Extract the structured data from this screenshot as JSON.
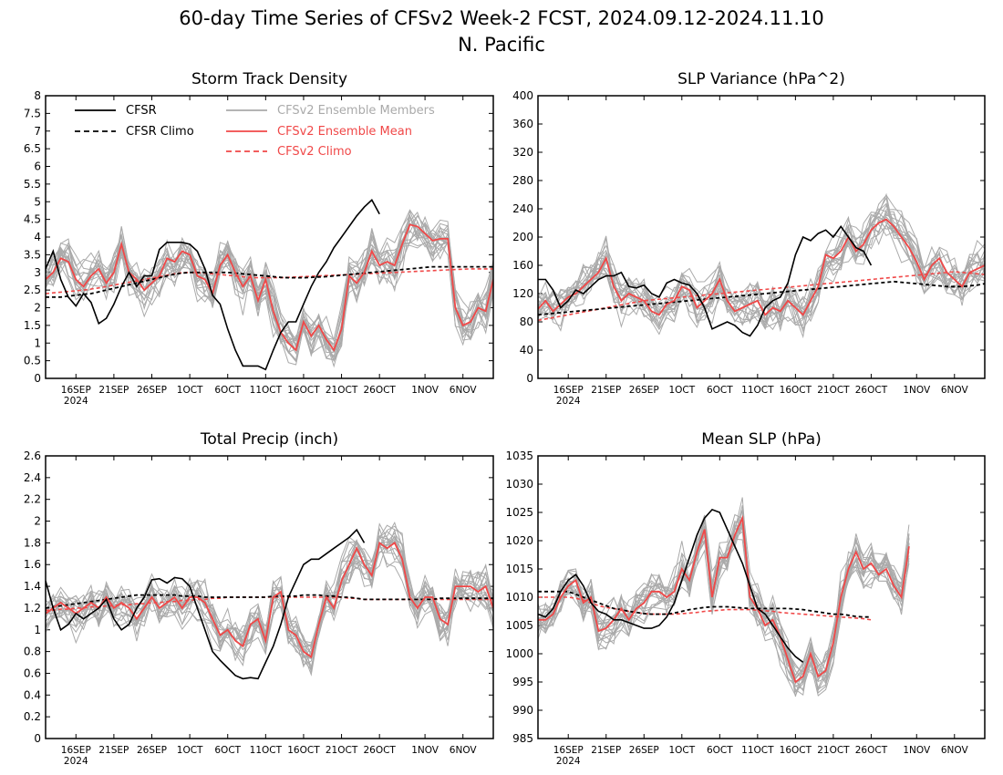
{
  "figure": {
    "title_line1": "60-day Time Series of CFSv2 Week-2 FCST, 2024.09.12-2024.11.10",
    "title_line2": "N. Pacific"
  },
  "colors": {
    "cfsr": "#000000",
    "cfsr_climo": "#000000",
    "members": "#aaaaaa",
    "ensemble_mean": "#f04848",
    "cfsv2_climo": "#f04848"
  },
  "x_axis": {
    "start_date": "2024-09-12",
    "days": 60,
    "ticks": [
      {
        "day": 4,
        "label": "16SEP"
      },
      {
        "day": 9,
        "label": "21SEP"
      },
      {
        "day": 14,
        "label": "26SEP"
      },
      {
        "day": 19,
        "label": "1OCT"
      },
      {
        "day": 24,
        "label": "6OCT"
      },
      {
        "day": 29,
        "label": "11OCT"
      },
      {
        "day": 34,
        "label": "16OCT"
      },
      {
        "day": 39,
        "label": "21OCT"
      },
      {
        "day": 44,
        "label": "26OCT"
      },
      {
        "day": 50,
        "label": "1NOV"
      },
      {
        "day": 55,
        "label": "6NOV"
      }
    ],
    "year_label": "2024"
  },
  "legend": {
    "cfsr": "CFSR",
    "cfsr_climo": "CFSR Climo",
    "members": "CFSv2 Ensemble Members",
    "ensemble_mean": "CFSv2 Ensemble Mean",
    "cfsv2_climo": "CFSv2 Climo"
  },
  "chart_data": [
    {
      "type": "line",
      "title": "Storm Track Density",
      "ylim": [
        0,
        8
      ],
      "yticks": [
        0,
        0.5,
        1,
        1.5,
        2,
        2.5,
        3,
        3.5,
        4,
        4.5,
        5,
        5.5,
        6,
        6.5,
        7,
        7.5,
        8
      ],
      "cfsr": [
        3.1,
        3.6,
        2.8,
        2.3,
        2.05,
        2.4,
        2.15,
        1.55,
        1.7,
        2.1,
        2.6,
        3.0,
        2.6,
        2.9,
        2.9,
        3.65,
        3.85,
        3.85,
        3.85,
        3.8,
        3.6,
        3.1,
        2.35,
        2.1,
        1.4,
        0.8,
        0.35,
        0.35,
        0.35,
        0.25,
        0.8,
        1.3,
        1.6,
        1.6,
        2.1,
        2.6,
        3.0,
        3.3,
        3.7,
        4.0,
        4.3,
        4.6,
        4.85,
        5.05,
        4.65
      ],
      "cfsr_climo": [
        2.3,
        2.3,
        2.3,
        2.33,
        2.35,
        2.38,
        2.4,
        2.45,
        2.5,
        2.55,
        2.6,
        2.65,
        2.7,
        2.75,
        2.8,
        2.85,
        2.9,
        2.95,
        2.98,
        3.0,
        3.0,
        3.0,
        3.0,
        3.0,
        3.0,
        2.98,
        2.96,
        2.94,
        2.92,
        2.9,
        2.88,
        2.86,
        2.85,
        2.85,
        2.85,
        2.86,
        2.87,
        2.88,
        2.9,
        2.92,
        2.94,
        2.96,
        2.98,
        3.0,
        3.02,
        3.04,
        3.06,
        3.08,
        3.1,
        3.12,
        3.14,
        3.16,
        3.16,
        3.16,
        3.16,
        3.16,
        3.16,
        3.16,
        3.16,
        3.16
      ],
      "ensemble_mean": [
        2.8,
        3.0,
        3.4,
        3.3,
        2.8,
        2.6,
        2.9,
        3.1,
        2.7,
        3.0,
        3.8,
        3.0,
        2.8,
        2.5,
        2.7,
        2.9,
        3.4,
        3.3,
        3.6,
        3.5,
        2.9,
        2.8,
        2.4,
        3.2,
        3.5,
        3.0,
        2.6,
        2.9,
        2.2,
        2.8,
        1.9,
        1.3,
        1.0,
        0.8,
        1.6,
        1.2,
        1.5,
        1.1,
        0.8,
        1.4,
        2.9,
        2.7,
        3.0,
        3.6,
        3.2,
        3.3,
        3.2,
        3.8,
        4.35,
        4.3,
        4.1,
        3.9,
        3.95,
        3.95,
        2.0,
        1.5,
        1.6,
        2.0,
        1.9,
        2.8
      ],
      "cfsv2_climo": [
        2.4,
        2.42,
        2.44,
        2.46,
        2.48,
        2.5,
        2.53,
        2.56,
        2.6,
        2.64,
        2.68,
        2.72,
        2.76,
        2.8,
        2.84,
        2.88,
        2.92,
        2.96,
        2.99,
        3.0,
        2.99,
        2.98,
        2.96,
        2.94,
        2.92,
        2.9,
        2.88,
        2.86,
        2.85,
        2.85,
        2.85,
        2.85,
        2.86,
        2.87,
        2.88,
        2.89,
        2.9,
        2.91,
        2.92,
        2.93,
        2.94,
        2.95,
        2.96,
        2.97,
        2.98,
        2.99,
        3.0,
        3.01,
        3.02,
        3.03,
        3.04,
        3.05,
        3.06,
        3.07,
        3.08,
        3.09,
        3.1,
        3.1,
        3.1,
        3.1
      ]
    },
    {
      "type": "line",
      "title": "SLP Variance (hPa^2)",
      "ylim": [
        0,
        400
      ],
      "yticks": [
        0,
        40,
        80,
        120,
        160,
        200,
        240,
        280,
        320,
        360,
        400
      ],
      "cfsr": [
        140,
        140,
        125,
        100,
        110,
        125,
        120,
        130,
        140,
        145,
        145,
        150,
        130,
        128,
        132,
        120,
        115,
        135,
        140,
        135,
        132,
        120,
        100,
        70,
        75,
        80,
        75,
        65,
        60,
        75,
        100,
        110,
        115,
        135,
        175,
        200,
        195,
        205,
        210,
        200,
        215,
        200,
        185,
        180,
        160
      ],
      "cfsr_climo": [
        90,
        91,
        92,
        93,
        94,
        95,
        96,
        97,
        98,
        99,
        100,
        101,
        102,
        103,
        104,
        105,
        106,
        107,
        108,
        109,
        110,
        111,
        112,
        113,
        114,
        115,
        116,
        117,
        118,
        119,
        120,
        121,
        122,
        123,
        124,
        125,
        126,
        127,
        128,
        129,
        130,
        131,
        132,
        133,
        134,
        135,
        136,
        137,
        136,
        135,
        134,
        133,
        132,
        131,
        130,
        130,
        130,
        131,
        132,
        134
      ],
      "ensemble_mean": [
        98,
        110,
        95,
        105,
        115,
        120,
        130,
        140,
        150,
        170,
        130,
        110,
        120,
        115,
        110,
        95,
        90,
        105,
        110,
        130,
        125,
        100,
        110,
        120,
        140,
        110,
        95,
        100,
        105,
        110,
        90,
        100,
        95,
        110,
        100,
        90,
        110,
        130,
        175,
        170,
        180,
        200,
        180,
        190,
        210,
        220,
        225,
        215,
        200,
        185,
        165,
        140,
        160,
        170,
        150,
        140,
        130,
        150,
        155,
        160
      ],
      "cfsv2_climo": [
        82,
        84,
        86,
        88,
        90,
        92,
        94,
        96,
        98,
        100,
        102,
        104,
        106,
        108,
        110,
        111,
        112,
        113,
        114,
        115,
        116,
        117,
        118,
        119,
        120,
        121,
        122,
        123,
        124,
        125,
        126,
        127,
        128,
        129,
        130,
        131,
        132,
        133,
        134,
        135,
        136,
        137,
        138,
        139,
        140,
        141,
        142,
        143,
        144,
        145,
        146,
        147,
        148,
        149,
        150,
        151,
        150,
        149,
        148,
        147
      ]
    },
    {
      "type": "line",
      "title": "Total Precip (inch)",
      "ylim": [
        0,
        2.6
      ],
      "yticks": [
        0,
        0.2,
        0.4,
        0.6,
        0.8,
        1,
        1.2,
        1.4,
        1.6,
        1.8,
        2,
        2.2,
        2.4,
        2.6
      ],
      "cfsr": [
        1.45,
        1.2,
        1.0,
        1.05,
        1.15,
        1.1,
        1.15,
        1.2,
        1.28,
        1.1,
        1.0,
        1.05,
        1.2,
        1.3,
        1.46,
        1.47,
        1.43,
        1.48,
        1.47,
        1.4,
        1.2,
        1.0,
        0.8,
        0.72,
        0.65,
        0.58,
        0.55,
        0.56,
        0.55,
        0.7,
        0.85,
        1.05,
        1.3,
        1.45,
        1.6,
        1.65,
        1.65,
        1.7,
        1.75,
        1.8,
        1.85,
        1.92,
        1.8
      ],
      "cfsr_climo": [
        1.2,
        1.21,
        1.22,
        1.23,
        1.24,
        1.25,
        1.26,
        1.27,
        1.28,
        1.29,
        1.3,
        1.31,
        1.32,
        1.32,
        1.32,
        1.32,
        1.32,
        1.32,
        1.31,
        1.31,
        1.31,
        1.3,
        1.3,
        1.3,
        1.3,
        1.3,
        1.3,
        1.3,
        1.3,
        1.3,
        1.31,
        1.31,
        1.31,
        1.31,
        1.32,
        1.32,
        1.32,
        1.31,
        1.31,
        1.3,
        1.3,
        1.29,
        1.28,
        1.28,
        1.28,
        1.28,
        1.28,
        1.28,
        1.28,
        1.28,
        1.28,
        1.28,
        1.29,
        1.29,
        1.29,
        1.29,
        1.29,
        1.29,
        1.29,
        1.29
      ],
      "ensemble_mean": [
        1.15,
        1.2,
        1.25,
        1.2,
        1.15,
        1.2,
        1.25,
        1.2,
        1.3,
        1.2,
        1.25,
        1.2,
        1.1,
        1.2,
        1.3,
        1.2,
        1.25,
        1.3,
        1.2,
        1.3,
        1.3,
        1.25,
        1.1,
        0.95,
        1.0,
        0.9,
        0.85,
        1.05,
        1.1,
        0.9,
        1.3,
        1.35,
        1.0,
        0.95,
        0.8,
        0.75,
        1.05,
        1.3,
        1.2,
        1.45,
        1.6,
        1.75,
        1.6,
        1.5,
        1.8,
        1.75,
        1.8,
        1.65,
        1.3,
        1.2,
        1.3,
        1.3,
        1.1,
        1.05,
        1.4,
        1.4,
        1.4,
        1.35,
        1.4,
        1.2
      ],
      "cfsv2_climo": [
        1.18,
        1.18,
        1.19,
        1.19,
        1.2,
        1.2,
        1.21,
        1.21,
        1.22,
        1.22,
        1.23,
        1.23,
        1.24,
        1.24,
        1.25,
        1.25,
        1.26,
        1.26,
        1.27,
        1.27,
        1.28,
        1.28,
        1.29,
        1.29,
        1.3,
        1.3,
        1.3,
        1.3,
        1.3,
        1.3,
        1.3,
        1.3,
        1.3,
        1.3,
        1.3,
        1.3,
        1.3,
        1.3,
        1.3,
        1.3,
        1.29,
        1.29,
        1.28,
        1.28,
        1.28,
        1.28,
        1.28,
        1.28,
        1.28,
        1.28,
        1.28,
        1.28,
        1.28,
        1.28,
        1.28,
        1.28,
        1.28,
        1.28,
        1.28,
        1.28
      ]
    },
    {
      "type": "line",
      "title": "Mean SLP (hPa)",
      "ylim": [
        985,
        1035
      ],
      "yticks": [
        985,
        990,
        995,
        1000,
        1005,
        1010,
        1015,
        1020,
        1025,
        1030,
        1035
      ],
      "cfsr": [
        1007,
        1006.5,
        1008,
        1011,
        1013,
        1014,
        1012,
        1009,
        1007.5,
        1007,
        1006,
        1006,
        1005.5,
        1005,
        1004.5,
        1004.5,
        1005,
        1006.5,
        1009,
        1013,
        1017,
        1021,
        1024,
        1025.5,
        1025,
        1022,
        1019,
        1016,
        1012,
        1008,
        1007,
        1005,
        1003,
        1001,
        999.5,
        998.5
      ],
      "cfsr_climo": [
        1011,
        1011,
        1011,
        1011,
        1011,
        1010.5,
        1010,
        1009.5,
        1009,
        1008.5,
        1008,
        1007.8,
        1007.5,
        1007.3,
        1007.1,
        1007,
        1007,
        1007,
        1007.2,
        1007.5,
        1007.8,
        1008,
        1008.2,
        1008.3,
        1008.3,
        1008.3,
        1008.2,
        1008.1,
        1008,
        1008,
        1008,
        1008,
        1008,
        1008,
        1007.9,
        1007.8,
        1007.6,
        1007.4,
        1007.2,
        1007,
        1007,
        1006.8,
        1006.6,
        1006.5,
        1006.5
      ],
      "ensemble_mean": [
        1006,
        1006,
        1007,
        1010,
        1012,
        1013,
        1009,
        1010,
        1004,
        1004.5,
        1006,
        1008,
        1006,
        1008,
        1009,
        1011,
        1011,
        1010,
        1011,
        1015,
        1013,
        1018,
        1022,
        1010,
        1017,
        1017,
        1021,
        1024,
        1010,
        1008,
        1005,
        1006,
        1003,
        999,
        995,
        996,
        1000,
        996,
        997,
        1002,
        1010,
        1015,
        1018,
        1015,
        1016,
        1014,
        1015,
        1012,
        1010,
        1019
      ],
      "cfsv2_climo": [
        1010,
        1010,
        1010,
        1010,
        1010,
        1009.8,
        1009.5,
        1009,
        1008.5,
        1008.2,
        1008,
        1007.7,
        1007.5,
        1007.3,
        1007.1,
        1007,
        1007,
        1007,
        1007,
        1007.1,
        1007.2,
        1007.3,
        1007.5,
        1007.6,
        1007.7,
        1007.8,
        1007.8,
        1007.8,
        1007.8,
        1007.7,
        1007.6,
        1007.5,
        1007.3,
        1007.2,
        1007.1,
        1007,
        1006.9,
        1006.8,
        1006.7,
        1006.6,
        1006.5,
        1006.4,
        1006.3,
        1006.2,
        1006
      ]
    }
  ]
}
